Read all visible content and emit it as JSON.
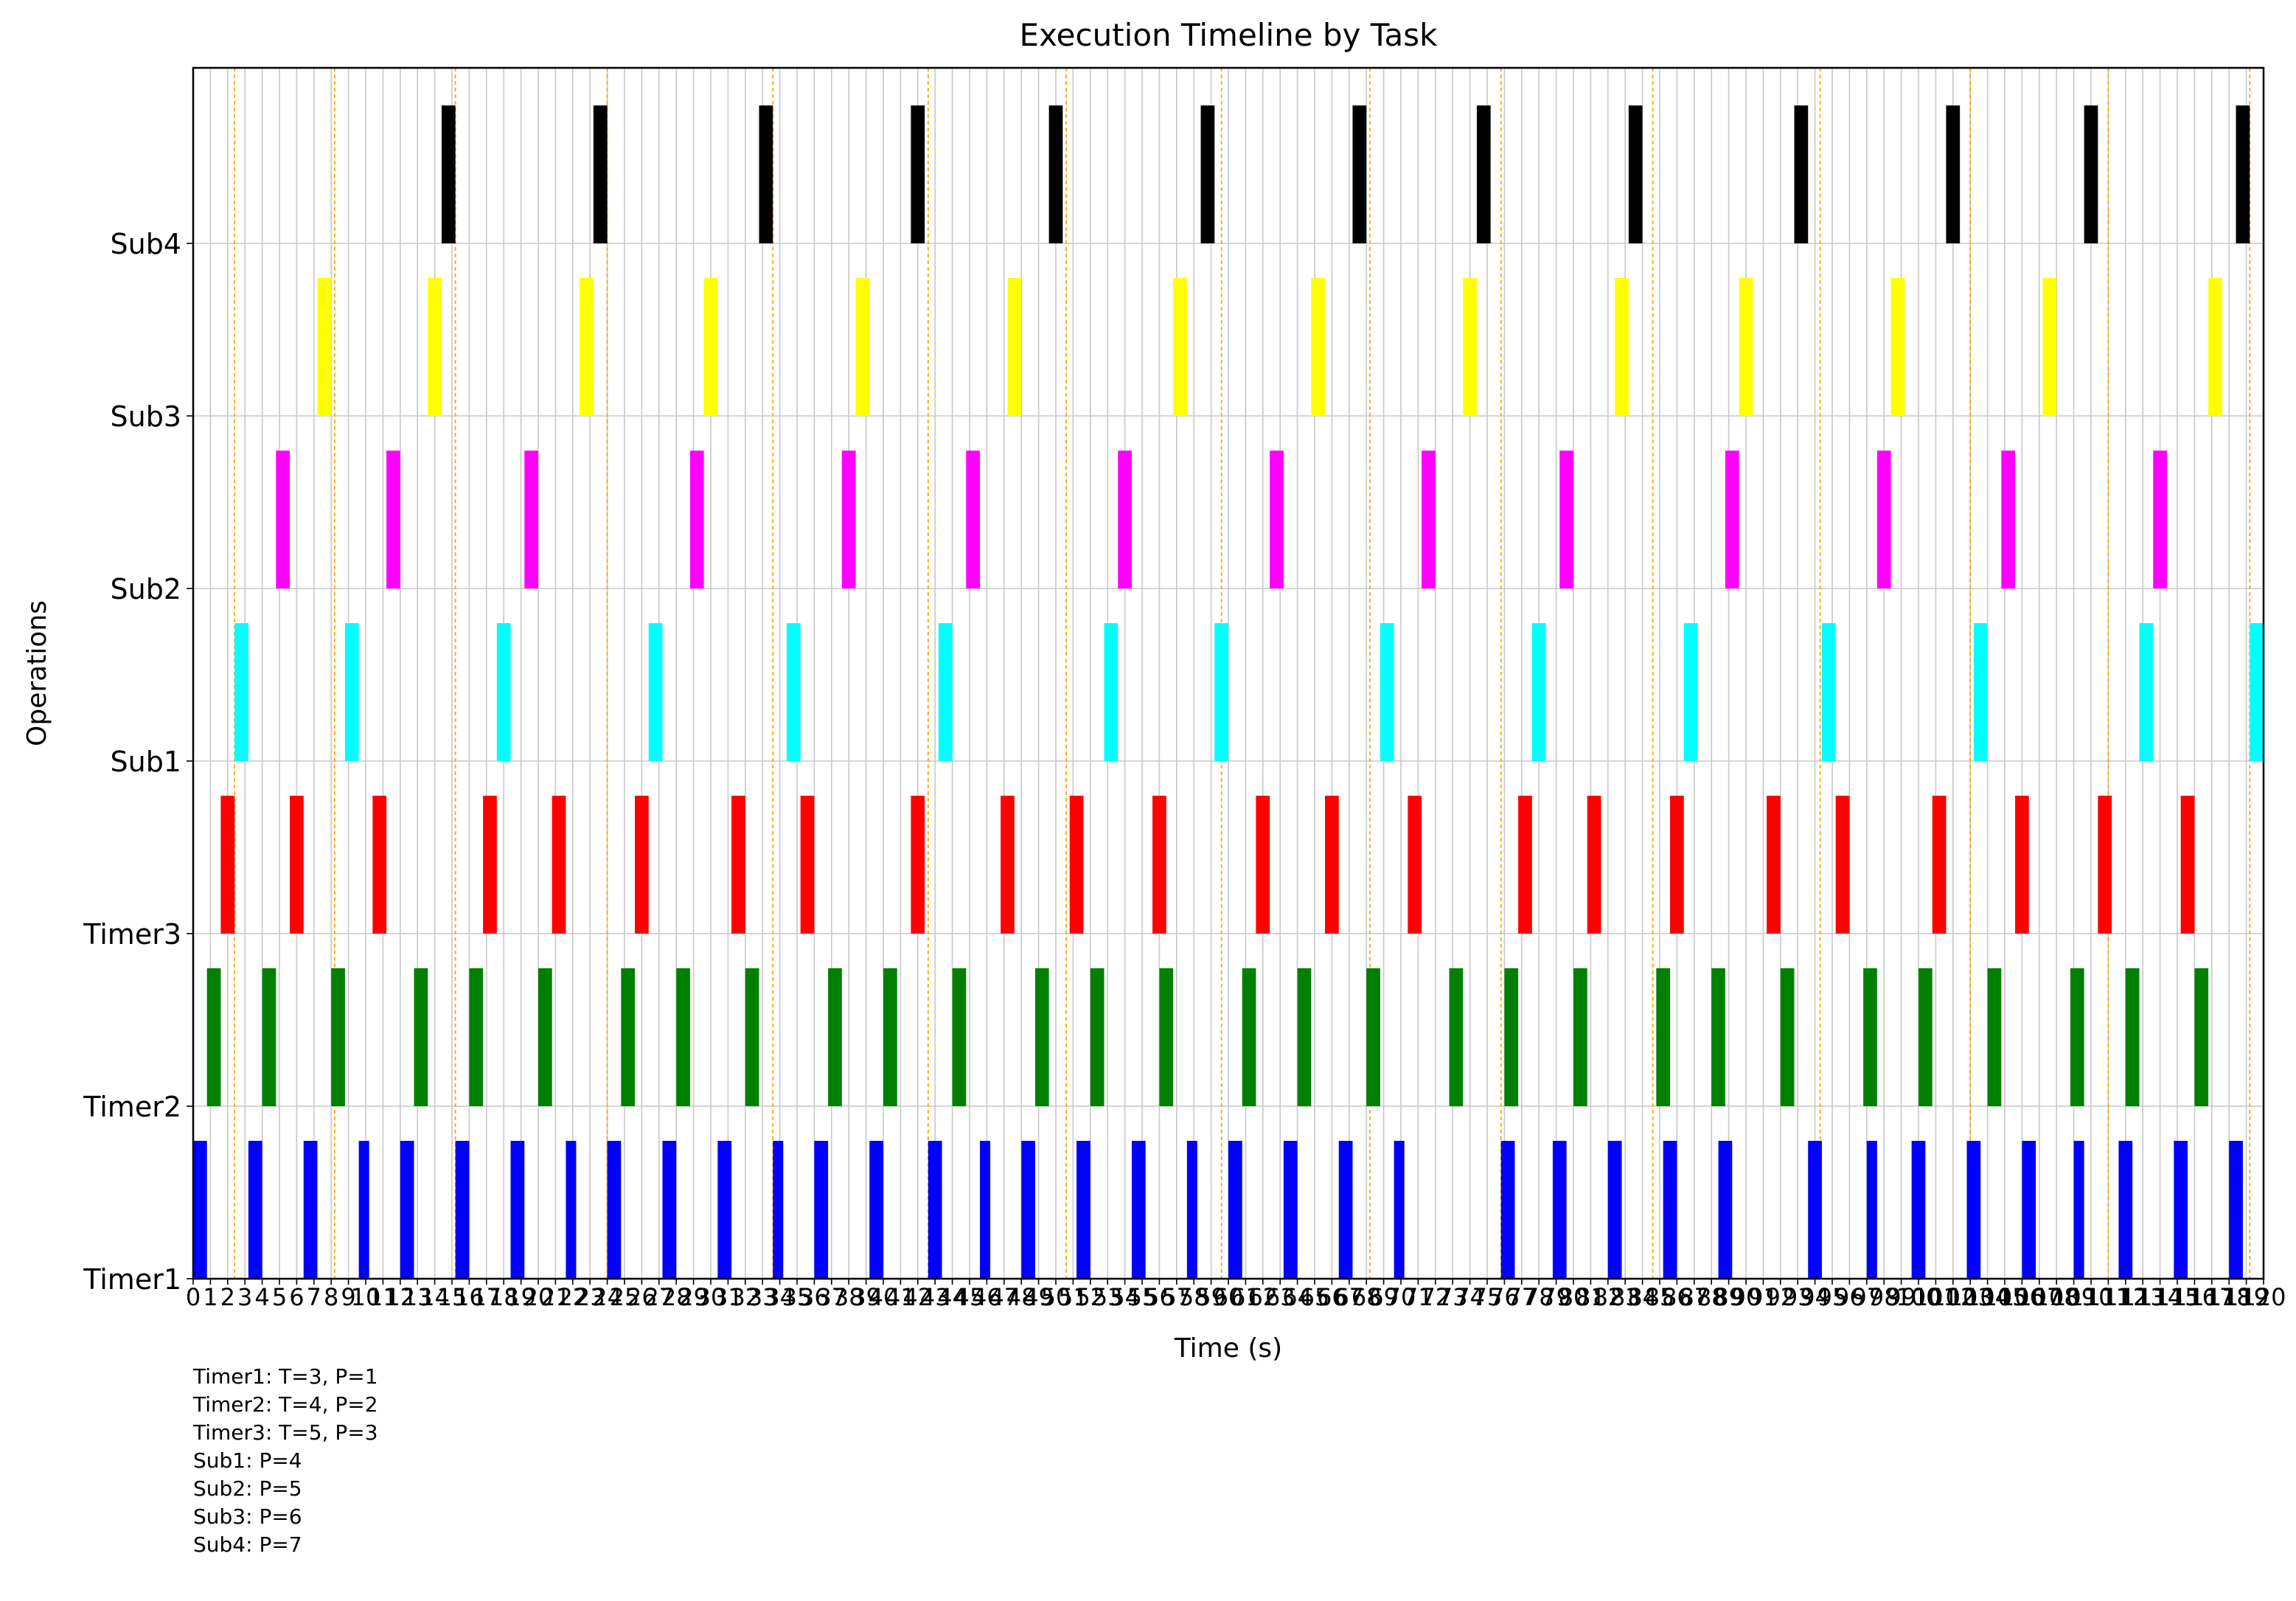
{
  "chart_data": {
    "type": "timeline",
    "title": "Execution Timeline by Task",
    "xlabel": "Time (s)",
    "ylabel": "Operations",
    "xlim": [
      0,
      120
    ],
    "x_ticks_step": 1,
    "grid": true,
    "categories": [
      "Timer1",
      "Timer2",
      "Timer3",
      "Sub1",
      "Sub2",
      "Sub3",
      "Sub4"
    ],
    "colors": {
      "Timer1": "#0000ff",
      "Timer2": "#008000",
      "Timer3": "#ff0000",
      "Sub1": "#00ffff",
      "Sub2": "#ff00ff",
      "Sub3": "#ffff00",
      "Sub4": "#000000"
    },
    "reference_line_color": "#ffa500",
    "reference_lines": [
      2.4,
      8.2,
      15.2,
      24.0,
      33.6,
      42.6,
      50.6,
      59.6,
      68.2,
      75.8,
      84.6,
      94.3,
      103.0,
      111.0,
      119.2
    ],
    "series": [
      {
        "name": "Timer1",
        "intervals": [
          [
            0.0,
            0.8
          ],
          [
            3.2,
            4.0
          ],
          [
            6.4,
            7.2
          ],
          [
            9.6,
            10.2
          ],
          [
            12.0,
            12.8
          ],
          [
            15.2,
            16.0
          ],
          [
            18.4,
            19.2
          ],
          [
            21.6,
            22.2
          ],
          [
            24.0,
            24.8
          ],
          [
            27.2,
            28.0
          ],
          [
            30.4,
            31.2
          ],
          [
            33.6,
            34.2
          ],
          [
            36.0,
            36.8
          ],
          [
            39.2,
            40.0
          ],
          [
            42.6,
            43.4
          ],
          [
            45.6,
            46.2
          ],
          [
            48.0,
            48.8
          ],
          [
            51.2,
            52.0
          ],
          [
            54.4,
            55.2
          ],
          [
            57.6,
            58.2
          ],
          [
            60.0,
            60.8
          ],
          [
            63.2,
            64.0
          ],
          [
            66.4,
            67.2
          ],
          [
            69.6,
            70.2
          ],
          [
            75.8,
            76.6
          ],
          [
            78.8,
            79.6
          ],
          [
            82.0,
            82.8
          ],
          [
            85.2,
            86.0
          ],
          [
            88.4,
            89.2
          ],
          [
            93.6,
            94.4
          ],
          [
            97.0,
            97.6
          ],
          [
            99.6,
            100.4
          ],
          [
            102.8,
            103.6
          ],
          [
            106.0,
            106.8
          ],
          [
            109.0,
            109.6
          ],
          [
            111.6,
            112.4
          ],
          [
            114.8,
            115.6
          ],
          [
            118.0,
            118.8
          ]
        ]
      },
      {
        "name": "Timer2",
        "intervals": [
          [
            0.8,
            1.6
          ],
          [
            4.0,
            4.8
          ],
          [
            8.0,
            8.8
          ],
          [
            12.8,
            13.6
          ],
          [
            16.0,
            16.8
          ],
          [
            20.0,
            20.8
          ],
          [
            24.8,
            25.6
          ],
          [
            28.0,
            28.8
          ],
          [
            32.0,
            32.8
          ],
          [
            36.8,
            37.6
          ],
          [
            40.0,
            40.8
          ],
          [
            44.0,
            44.8
          ],
          [
            48.8,
            49.6
          ],
          [
            52.0,
            52.8
          ],
          [
            56.0,
            56.8
          ],
          [
            60.8,
            61.6
          ],
          [
            64.0,
            64.8
          ],
          [
            68.0,
            68.8
          ],
          [
            72.8,
            73.6
          ],
          [
            76.0,
            76.8
          ],
          [
            80.0,
            80.8
          ],
          [
            84.8,
            85.6
          ],
          [
            88.0,
            88.8
          ],
          [
            92.0,
            92.8
          ],
          [
            96.8,
            97.6
          ],
          [
            100.0,
            100.8
          ],
          [
            104.0,
            104.8
          ],
          [
            108.8,
            109.6
          ],
          [
            112.0,
            112.8
          ],
          [
            116.0,
            116.8
          ]
        ]
      },
      {
        "name": "Timer3",
        "intervals": [
          [
            1.6,
            2.4
          ],
          [
            5.6,
            6.4
          ],
          [
            10.4,
            11.2
          ],
          [
            16.8,
            17.6
          ],
          [
            20.8,
            21.6
          ],
          [
            25.6,
            26.4
          ],
          [
            31.2,
            32.0
          ],
          [
            35.2,
            36.0
          ],
          [
            41.6,
            42.4
          ],
          [
            46.8,
            47.6
          ],
          [
            50.8,
            51.6
          ],
          [
            55.6,
            56.4
          ],
          [
            61.6,
            62.4
          ],
          [
            65.6,
            66.4
          ],
          [
            70.4,
            71.2
          ],
          [
            76.8,
            77.6
          ],
          [
            80.8,
            81.6
          ],
          [
            85.6,
            86.4
          ],
          [
            91.2,
            92.0
          ],
          [
            95.2,
            96.0
          ],
          [
            100.8,
            101.6
          ],
          [
            105.6,
            106.4
          ],
          [
            110.4,
            111.2
          ],
          [
            115.2,
            116.0
          ]
        ]
      },
      {
        "name": "Sub1",
        "intervals": [
          [
            2.4,
            3.2
          ],
          [
            8.8,
            9.6
          ],
          [
            17.6,
            18.4
          ],
          [
            26.4,
            27.2
          ],
          [
            34.4,
            35.2
          ],
          [
            43.2,
            44.0
          ],
          [
            52.8,
            53.6
          ],
          [
            59.2,
            60.0
          ],
          [
            68.8,
            69.6
          ],
          [
            77.6,
            78.4
          ],
          [
            86.4,
            87.2
          ],
          [
            94.4,
            95.2
          ],
          [
            103.2,
            104.0
          ],
          [
            112.8,
            113.6
          ],
          [
            119.2,
            120.0
          ]
        ]
      },
      {
        "name": "Sub2",
        "intervals": [
          [
            4.8,
            5.6
          ],
          [
            11.2,
            12.0
          ],
          [
            19.2,
            20.0
          ],
          [
            28.8,
            29.6
          ],
          [
            37.6,
            38.4
          ],
          [
            44.8,
            45.6
          ],
          [
            53.6,
            54.4
          ],
          [
            62.4,
            63.2
          ],
          [
            71.2,
            72.0
          ],
          [
            79.2,
            80.0
          ],
          [
            88.8,
            89.6
          ],
          [
            97.6,
            98.4
          ],
          [
            104.8,
            105.6
          ],
          [
            113.6,
            114.4
          ]
        ]
      },
      {
        "name": "Sub3",
        "intervals": [
          [
            7.2,
            8.0
          ],
          [
            13.6,
            14.4
          ],
          [
            22.4,
            23.2
          ],
          [
            29.6,
            30.4
          ],
          [
            38.4,
            39.2
          ],
          [
            47.2,
            48.0
          ],
          [
            56.8,
            57.6
          ],
          [
            64.8,
            65.6
          ],
          [
            73.6,
            74.4
          ],
          [
            82.4,
            83.2
          ],
          [
            89.6,
            90.4
          ],
          [
            98.4,
            99.2
          ],
          [
            107.2,
            108.0
          ],
          [
            116.8,
            117.6
          ]
        ]
      },
      {
        "name": "Sub4",
        "intervals": [
          [
            14.4,
            15.2
          ],
          [
            23.2,
            24.0
          ],
          [
            32.8,
            33.6
          ],
          [
            41.6,
            42.4
          ],
          [
            49.6,
            50.4
          ],
          [
            58.4,
            59.2
          ],
          [
            67.2,
            68.0
          ],
          [
            74.4,
            75.2
          ],
          [
            83.2,
            84.0
          ],
          [
            92.8,
            93.6
          ],
          [
            101.6,
            102.4
          ],
          [
            109.6,
            110.4
          ],
          [
            118.4,
            119.2
          ]
        ]
      }
    ]
  },
  "legend": [
    "Timer1: T=3, P=1",
    "Timer2: T=4, P=2",
    "Timer3: T=5, P=3",
    "Sub1: P=4",
    "Sub2: P=5",
    "Sub3: P=6",
    "Sub4: P=7"
  ]
}
